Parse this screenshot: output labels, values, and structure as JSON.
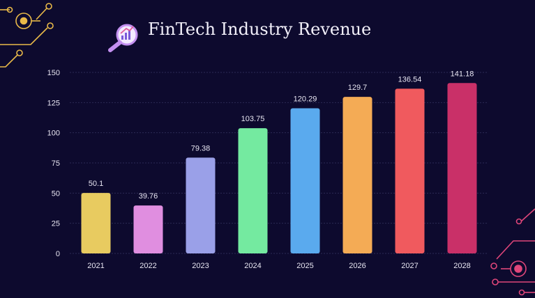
{
  "title": "FinTech Industry Revenue",
  "icons": {
    "title_icon": "magnifier-chart-icon",
    "circuit_top_left": "circuit-decoration-icon",
    "circuit_bottom_right": "circuit-decoration-icon"
  },
  "colors": {
    "background": "#0d0a2e",
    "text": "#e8e6f2",
    "circuit_gold": "#e9b949",
    "circuit_pink": "#e0467a"
  },
  "chart_data": {
    "type": "bar",
    "title": "FinTech Industry Revenue",
    "xlabel": "",
    "ylabel": "",
    "categories": [
      "2021",
      "2022",
      "2023",
      "2024",
      "2025",
      "2026",
      "2027",
      "2028"
    ],
    "values": [
      50.1,
      39.76,
      79.38,
      103.75,
      120.29,
      129.7,
      136.54,
      141.18
    ],
    "data_labels": [
      "50.1",
      "39.76",
      "79.38",
      "103.75",
      "120.29",
      "129.7",
      "136.54",
      "141.18"
    ],
    "bar_colors": [
      "#e8cb60",
      "#e08ee0",
      "#9aa0e8",
      "#74eaa0",
      "#5aaaee",
      "#f4ab55",
      "#f05a5e",
      "#c93068"
    ],
    "ylim": [
      0,
      150
    ],
    "yticks": [
      "0",
      "25",
      "50",
      "75",
      "100",
      "125",
      "150"
    ],
    "grid": true,
    "legend": "none"
  }
}
